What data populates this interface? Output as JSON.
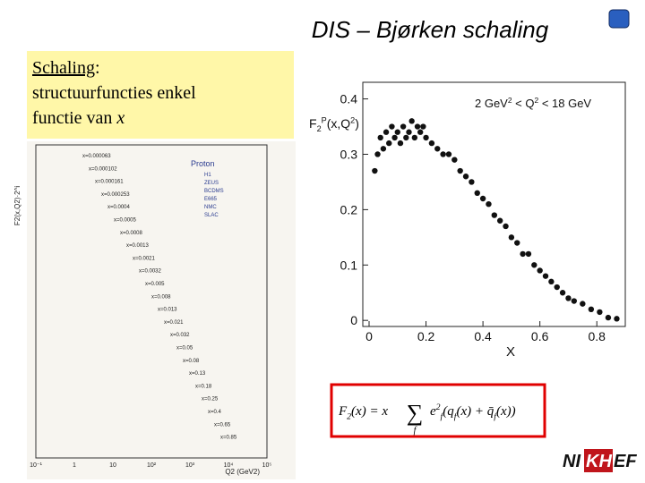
{
  "title": "DIS – Bjørken schaling",
  "callout": {
    "word": "Schaling",
    "colon": ":",
    "line2": "structuurfuncties enkel",
    "line3": "functie van ",
    "variable": "x"
  },
  "left_plot": {
    "ylabel": "F2(x,Q2)·2^i",
    "xlabel": "Q2 (GeV2)",
    "legend_title": "Proton",
    "legend": [
      "H1",
      "ZEUS",
      "BCDMS",
      "E665",
      "NMC",
      "SLAC"
    ],
    "bin_labels": [
      "x=0.000063",
      "x=0.000102",
      "x=0.000161",
      "x=0.000253",
      "x=0.0004",
      "x=0.0005",
      "x=0.0008",
      "x=0.0013",
      "x=0.0021",
      "x=0.0032",
      "x=0.005",
      "x=0.008",
      "x=0.013",
      "x=0.021",
      "x=0.032",
      "x=0.05",
      "x=0.08",
      "x=0.13",
      "x=0.18",
      "x=0.25",
      "x=0.4",
      "x=0.65",
      "x=0.85"
    ],
    "xtick_labels": [
      "10⁻¹",
      "1",
      "10",
      "10²",
      "10³",
      "10⁴",
      "10⁵"
    ]
  },
  "chart_data": {
    "type": "scatter",
    "ylabel": {
      "parts": [
        "F",
        "2",
        "P",
        "(x,Q",
        "2",
        ")"
      ],
      "roles": [
        "n",
        "sub",
        "sup",
        "n",
        "sup",
        "n"
      ]
    },
    "xlabel": "X",
    "annotation": {
      "parts": [
        "2 GeV",
        "2",
        " < Q",
        "2",
        " < 18 GeV"
      ],
      "roles": [
        "n",
        "sup",
        "n",
        "sup",
        "n"
      ]
    },
    "x": [
      0.02,
      0.03,
      0.04,
      0.05,
      0.06,
      0.07,
      0.08,
      0.09,
      0.1,
      0.11,
      0.12,
      0.13,
      0.14,
      0.15,
      0.16,
      0.17,
      0.18,
      0.19,
      0.2,
      0.22,
      0.24,
      0.26,
      0.28,
      0.3,
      0.32,
      0.34,
      0.36,
      0.38,
      0.4,
      0.42,
      0.44,
      0.46,
      0.48,
      0.5,
      0.52,
      0.54,
      0.56,
      0.58,
      0.6,
      0.62,
      0.64,
      0.66,
      0.68,
      0.7,
      0.72,
      0.75,
      0.78,
      0.81,
      0.84,
      0.87
    ],
    "values": [
      0.27,
      0.3,
      0.33,
      0.31,
      0.34,
      0.32,
      0.35,
      0.33,
      0.34,
      0.32,
      0.35,
      0.33,
      0.34,
      0.36,
      0.33,
      0.35,
      0.34,
      0.35,
      0.33,
      0.32,
      0.31,
      0.3,
      0.3,
      0.29,
      0.27,
      0.26,
      0.25,
      0.23,
      0.22,
      0.21,
      0.19,
      0.18,
      0.17,
      0.15,
      0.14,
      0.12,
      0.12,
      0.1,
      0.09,
      0.08,
      0.07,
      0.06,
      0.05,
      0.04,
      0.035,
      0.03,
      0.02,
      0.015,
      0.005,
      0.003
    ],
    "color": "#111111",
    "xlim": [
      -0.022,
      0.9
    ],
    "ylim": [
      -0.011,
      0.43
    ],
    "xticks": [
      0,
      0.2,
      0.4,
      0.6,
      0.8
    ],
    "yticks": [
      0,
      0.1,
      0.2,
      0.3,
      0.4
    ]
  },
  "formula": {
    "lhs": {
      "parts": [
        "F",
        "2",
        "(x) = x"
      ],
      "roles": [
        "n",
        "sub",
        "n"
      ]
    },
    "sum": "∑",
    "sum_index": "f",
    "rhs": {
      "parts": [
        "e",
        "2",
        "f",
        "(q",
        "f",
        "(x) + ",
        "q̄",
        "f",
        "(x))"
      ],
      "roles": [
        "n",
        "sup",
        "sub",
        "n",
        "sub",
        "n",
        "n",
        "sub",
        "n"
      ]
    }
  },
  "logo": {
    "left": "NI",
    "middle": "KH",
    "right": "EF"
  }
}
